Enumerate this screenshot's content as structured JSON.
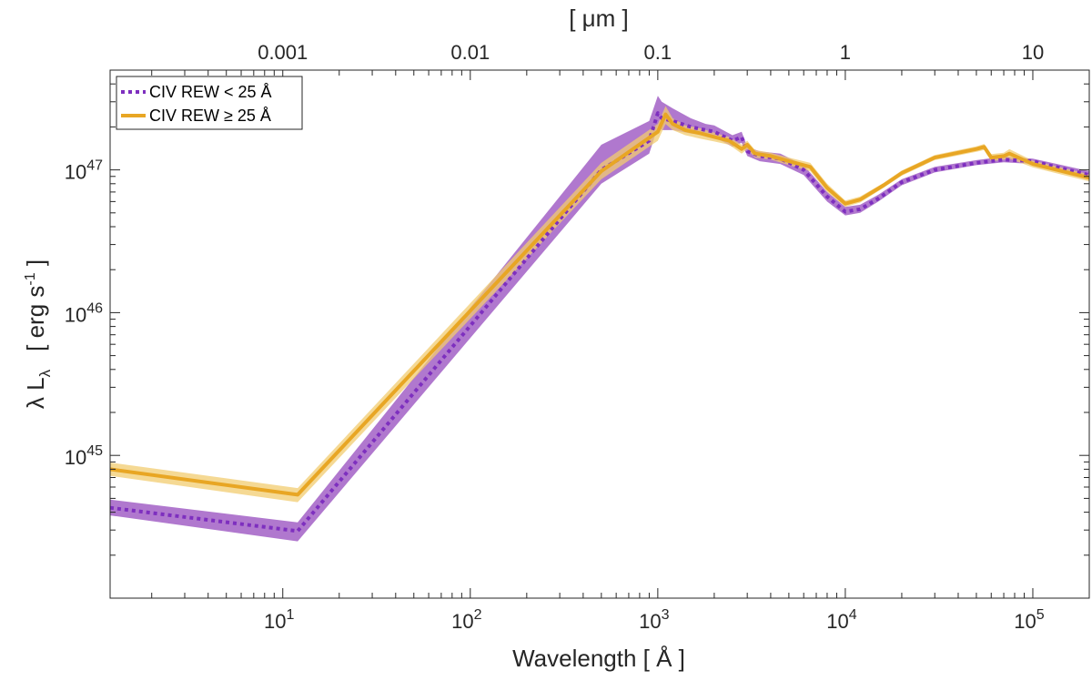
{
  "chart_data": {
    "type": "line",
    "xscale": "log",
    "yscale": "log",
    "xlim": [
      1.2,
      200000
    ],
    "ylim": [
      1e+44,
      5e+47
    ],
    "xlabel": "Wavelength  [  Å  ]",
    "top_axis_label": "[ μm ]",
    "ylabel_main": "λ L",
    "ylabel_sub": "λ",
    "ylabel_units": "[ erg s",
    "ylabel_units_sup": "-1",
    "ylabel_units_end": " ]",
    "x_ticks": [
      {
        "value": 10,
        "base": "10",
        "exp": "1"
      },
      {
        "value": 100,
        "base": "10",
        "exp": "2"
      },
      {
        "value": 1000,
        "base": "10",
        "exp": "3"
      },
      {
        "value": 10000,
        "base": "10",
        "exp": "4"
      },
      {
        "value": 100000,
        "base": "10",
        "exp": "5"
      }
    ],
    "y_ticks": [
      {
        "value": 1e+45,
        "base": "10",
        "exp": "45"
      },
      {
        "value": 1e+46,
        "base": "10",
        "exp": "46"
      },
      {
        "value": 1e+47,
        "base": "10",
        "exp": "47"
      }
    ],
    "top_ticks": [
      {
        "value": 10,
        "label": "0.001"
      },
      {
        "value": 100,
        "label": "0.01"
      },
      {
        "value": 1000,
        "label": "0.1"
      },
      {
        "value": 10000,
        "label": "1"
      },
      {
        "value": 100000,
        "label": "10"
      }
    ],
    "legend_position": "top-left",
    "series": [
      {
        "name": "CIV REW < 25 Å",
        "legend_prefix": "CIV REW < 25 Å",
        "color": "#7e2fbf",
        "band_color": "#a260c6",
        "style": "dotted",
        "x": [
          1.2,
          12,
          500,
          900,
          1000,
          1050,
          1200,
          1500,
          1800,
          2000,
          2500,
          2800,
          3000,
          3500,
          4500,
          6000,
          8000,
          10000,
          12000,
          15000,
          20000,
          30000,
          50000,
          70000,
          100000,
          200000
        ],
        "y": [
          4.3e+44,
          2.95e+44,
          1e+47,
          1.6e+47,
          2.5e+47,
          2.3e+47,
          2.2e+47,
          2e+47,
          1.9e+47,
          1.85e+47,
          1.6e+47,
          1.7e+47,
          1.35e+47,
          1.25e+47,
          1.2e+47,
          1e+47,
          6.5e+46,
          5.1e+46,
          5.3e+46,
          6.3e+46,
          8.2e+46,
          1e+47,
          1.12e+47,
          1.18e+47,
          1.15e+47,
          9.2e+46
        ],
        "y_low": [
          3.8e+44,
          2.5e+44,
          8e+46,
          1.3e+47,
          2e+47,
          1.9e+47,
          1.9e+47,
          1.8e+47,
          1.75e+47,
          1.7e+47,
          1.45e+47,
          1.55e+47,
          1.25e+47,
          1.15e+47,
          1.1e+47,
          9.2e+46,
          6e+46,
          4.8e+46,
          5e+46,
          6e+46,
          7.8e+46,
          9.6e+46,
          1.08e+47,
          1.13e+47,
          1.1e+47,
          8.6e+46
        ],
        "y_high": [
          4.9e+44,
          3.4e+44,
          1.5e+47,
          2.2e+47,
          3.3e+47,
          3e+47,
          2.7e+47,
          2.3e+47,
          2.1e+47,
          2.05e+47,
          1.75e+47,
          1.85e+47,
          1.45e+47,
          1.35e+47,
          1.3e+47,
          1.08e+47,
          7e+46,
          5.5e+46,
          5.7e+46,
          6.7e+46,
          8.6e+46,
          1.05e+47,
          1.17e+47,
          1.24e+47,
          1.2e+47,
          9.8e+46
        ]
      },
      {
        "name": "CIV REW ≥ 25 Å",
        "legend_prefix": "CIV REW ≥ 25 Å",
        "color": "#e8a624",
        "band_color": "#f1cc70",
        "style": "solid",
        "x": [
          1.2,
          12,
          500,
          1000,
          1100,
          1200,
          1400,
          1700,
          2000,
          2400,
          2800,
          3000,
          3300,
          4000,
          5000,
          6500,
          8000,
          10000,
          12000,
          16000,
          20000,
          30000,
          50000,
          55000,
          60000,
          70000,
          75000,
          100000,
          200000
        ],
        "y": [
          8e+44,
          5.3e+44,
          9.8e+46,
          1.85e+47,
          2.45e+47,
          2.1e+47,
          1.9e+47,
          1.8e+47,
          1.7e+47,
          1.6e+47,
          1.4e+47,
          1.5e+47,
          1.3e+47,
          1.25e+47,
          1.15e+47,
          1.05e+47,
          7.5e+46,
          5.8e+46,
          6.2e+46,
          7.8e+46,
          9.5e+46,
          1.22e+47,
          1.4e+47,
          1.45e+47,
          1.22e+47,
          1.25e+47,
          1.3e+47,
          1.1e+47,
          8.8e+46
        ],
        "y_low": [
          7.2e+44,
          4.7e+44,
          8.6e+46,
          1.6e+47,
          2.1e+47,
          1.9e+47,
          1.75e+47,
          1.65e+47,
          1.58e+47,
          1.5e+47,
          1.3e+47,
          1.4e+47,
          1.22e+47,
          1.18e+47,
          1.08e+47,
          9.8e+46,
          7e+46,
          5.5e+46,
          5.9e+46,
          7.5e+46,
          9.1e+46,
          1.17e+47,
          1.34e+47,
          1.38e+47,
          1.15e+47,
          1.18e+47,
          1.2e+47,
          1.04e+47,
          8.3e+46
        ],
        "y_high": [
          8.9e+44,
          5.9e+44,
          1.12e+47,
          2.1e+47,
          2.8e+47,
          2.3e+47,
          2.05e+47,
          1.95e+47,
          1.82e+47,
          1.7e+47,
          1.5e+47,
          1.6e+47,
          1.38e+47,
          1.32e+47,
          1.22e+47,
          1.12e+47,
          8e+46,
          6.1e+46,
          6.5e+46,
          8.1e+46,
          9.9e+46,
          1.27e+47,
          1.46e+47,
          1.52e+47,
          1.29e+47,
          1.32e+47,
          1.4e+47,
          1.16e+47,
          9.3e+46
        ]
      }
    ]
  }
}
